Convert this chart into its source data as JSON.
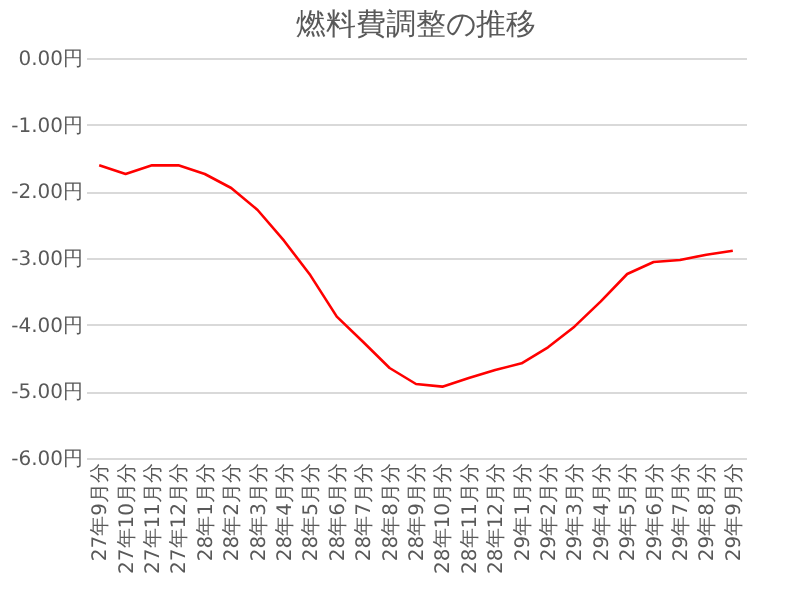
{
  "chart_data": {
    "type": "line",
    "title": "燃料費調整の推移",
    "categories": [
      "27年9月分",
      "27年10月分",
      "27年11月分",
      "27年12月分",
      "28年1月分",
      "28年2月分",
      "28年3月分",
      "28年4月分",
      "28年5月分",
      "28年6月分",
      "28年7月分",
      "28年8月分",
      "28年9月分",
      "28年10月分",
      "28年11月分",
      "28年12月分",
      "29年1月分",
      "29年2月分",
      "29年3月分",
      "29年4月分",
      "29年5月分",
      "29年6月分",
      "29年7月分",
      "29年8月分",
      "29年9月分"
    ],
    "series": [
      {
        "color": "#ff0000",
        "values": [
          -1.61,
          -1.74,
          -1.61,
          -1.61,
          -1.74,
          -1.95,
          -2.28,
          -2.74,
          -3.26,
          -3.88,
          -4.26,
          -4.65,
          -4.89,
          -4.93,
          -4.8,
          -4.68,
          -4.58,
          -4.34,
          -4.03,
          -3.65,
          -3.24,
          -3.06,
          -3.03,
          -2.95,
          -2.89
        ]
      }
    ],
    "ylim": [
      -6,
      0
    ],
    "yticks": [
      {
        "value": 0,
        "label": "0.00円"
      },
      {
        "value": -1,
        "label": "-1.00円"
      },
      {
        "value": -2,
        "label": "-2.00円"
      },
      {
        "value": -3,
        "label": "-3.00円"
      },
      {
        "value": -4,
        "label": "-4.00円"
      },
      {
        "value": -5,
        "label": "-5.00円"
      },
      {
        "value": -6,
        "label": "-6.00円"
      }
    ],
    "grid": "y",
    "legend": false,
    "marker": "none",
    "line_style": "solid"
  }
}
